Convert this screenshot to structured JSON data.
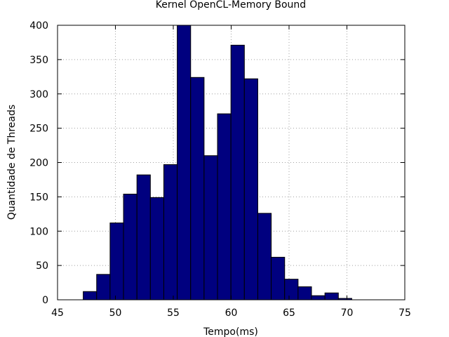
{
  "chart_data": {
    "type": "bar",
    "title": "Kernel OpenCL-Memory Bound",
    "xlabel": "Tempo(ms)",
    "ylabel": "Quantidade de Threads",
    "xlim": [
      45,
      75
    ],
    "ylim": [
      0,
      400
    ],
    "xticks": [
      45,
      50,
      55,
      60,
      65,
      70,
      75
    ],
    "yticks": [
      0,
      50,
      100,
      150,
      200,
      250,
      300,
      350,
      400
    ],
    "grid": true,
    "bar_color": "#00007f",
    "bin_width": 1.16,
    "bins": [
      {
        "x0": 47.22,
        "value": 12
      },
      {
        "x0": 48.38,
        "value": 37
      },
      {
        "x0": 49.54,
        "value": 112
      },
      {
        "x0": 50.7,
        "value": 154
      },
      {
        "x0": 51.86,
        "value": 182
      },
      {
        "x0": 53.02,
        "value": 149
      },
      {
        "x0": 54.18,
        "value": 197
      },
      {
        "x0": 55.34,
        "value": 400
      },
      {
        "x0": 56.5,
        "value": 324
      },
      {
        "x0": 57.66,
        "value": 210
      },
      {
        "x0": 58.82,
        "value": 271
      },
      {
        "x0": 59.98,
        "value": 371
      },
      {
        "x0": 61.14,
        "value": 322
      },
      {
        "x0": 62.3,
        "value": 126
      },
      {
        "x0": 63.46,
        "value": 62
      },
      {
        "x0": 64.62,
        "value": 30
      },
      {
        "x0": 65.78,
        "value": 19
      },
      {
        "x0": 66.94,
        "value": 6
      },
      {
        "x0": 68.1,
        "value": 10
      },
      {
        "x0": 69.26,
        "value": 2
      }
    ]
  }
}
